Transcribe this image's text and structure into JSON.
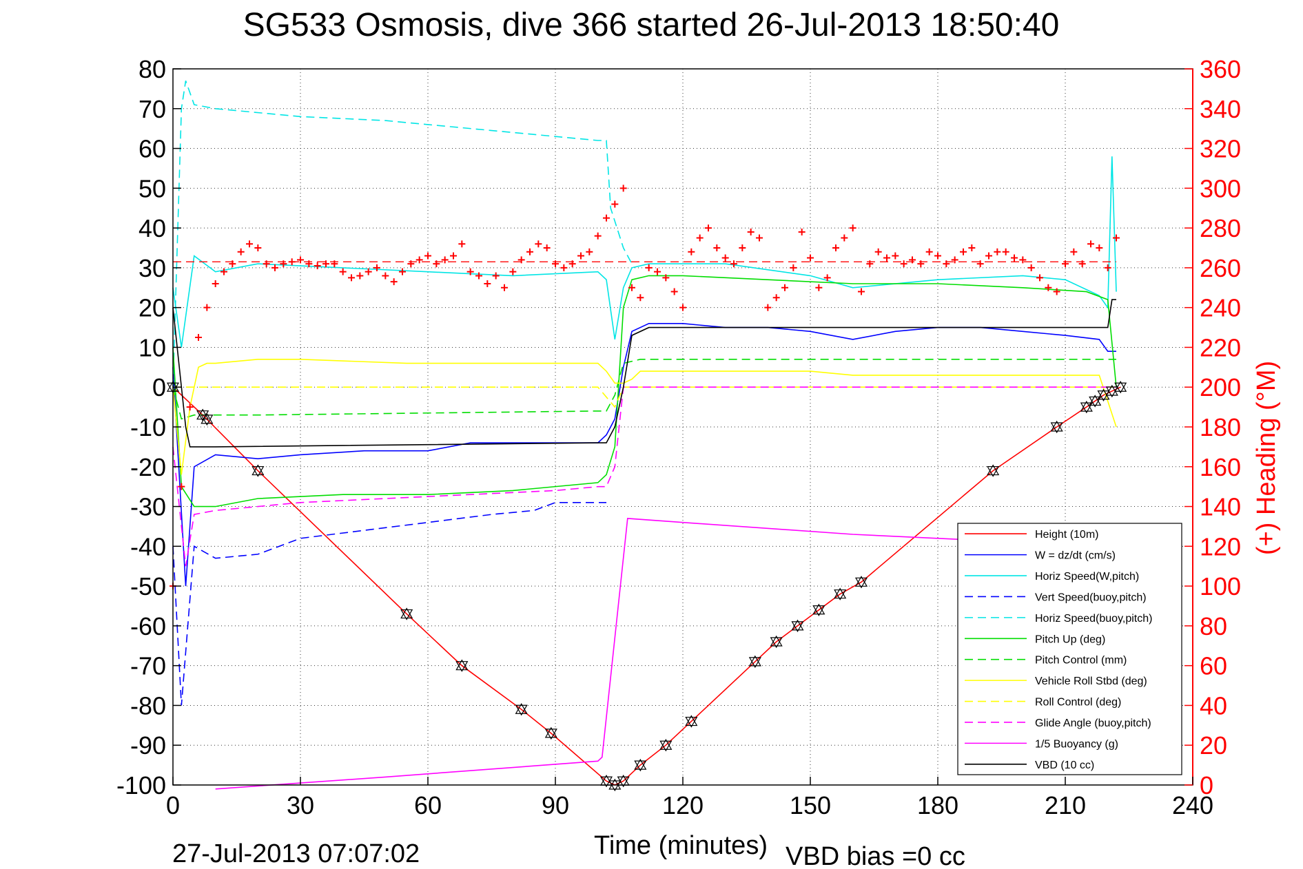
{
  "chart_data": {
    "type": "line",
    "title": "SG533 Osmosis, dive 366 started 26-Jul-2013 18:50:40",
    "xlabel": "Time (minutes)",
    "ylabel_right": "(+) Heading (°M)",
    "footer_date": "27-Jul-2013 07:07:02",
    "footer_note": "VBD bias =0 cc",
    "xlim": [
      0,
      240
    ],
    "ylim_left": [
      -100,
      80
    ],
    "ylim_right": [
      0,
      360
    ],
    "xticks": [
      0,
      30,
      60,
      90,
      120,
      150,
      180,
      210,
      240
    ],
    "yticks_left": [
      -100,
      -90,
      -80,
      -70,
      -60,
      -50,
      -40,
      -30,
      -20,
      -10,
      0,
      10,
      20,
      30,
      40,
      50,
      60,
      70,
      80
    ],
    "yticks_right": [
      0,
      20,
      40,
      60,
      80,
      100,
      120,
      140,
      160,
      180,
      200,
      220,
      240,
      260,
      280,
      300,
      320,
      340,
      360
    ],
    "grid": true,
    "legend_position": "bottom-right",
    "colors": {
      "right_axis": "#ff0000",
      "axes": "#000000",
      "grid": "#333333"
    },
    "series": [
      {
        "name": "Height (10m)",
        "color": "#ff0000",
        "dash": "solid",
        "x": [
          0,
          7,
          20,
          55,
          68,
          82,
          89,
          102,
          104,
          106,
          110,
          116,
          122,
          137,
          142,
          147,
          152,
          157,
          162,
          193,
          208,
          215,
          219,
          223
        ],
        "y": [
          0,
          -7,
          -21,
          -57,
          -70,
          -81,
          -87,
          -99,
          -100,
          -99,
          -95,
          -90,
          -84,
          -69,
          -64,
          -60,
          -56,
          -52,
          -49,
          -21,
          -10,
          -5,
          -2,
          0
        ]
      },
      {
        "name": "W = dz/dt (cm/s)",
        "color": "#0000ff",
        "dash": "solid",
        "x": [
          0,
          3,
          5,
          10,
          20,
          30,
          45,
          60,
          70,
          80,
          90,
          100,
          102,
          104,
          106,
          108,
          112,
          120,
          130,
          140,
          150,
          160,
          170,
          180,
          190,
          200,
          210,
          218,
          220,
          222
        ],
        "y": [
          5,
          -50,
          -20,
          -17,
          -18,
          -17,
          -16,
          -16,
          -14,
          -14,
          -14,
          -14,
          -12,
          -8,
          5,
          14,
          16,
          16,
          15,
          15,
          14,
          12,
          14,
          15,
          15,
          14,
          13,
          12,
          9,
          9
        ]
      },
      {
        "name": "Horiz Speed(W,pitch)",
        "color": "#00e5e5",
        "dash": "solid",
        "x": [
          0,
          2,
          5,
          10,
          20,
          40,
          60,
          80,
          100,
          102,
          104,
          106,
          108,
          112,
          130,
          150,
          160,
          180,
          200,
          210,
          218,
          220,
          221,
          222
        ],
        "y": [
          25,
          10,
          33,
          29,
          31,
          30,
          29,
          28,
          29,
          27,
          12,
          25,
          30,
          31,
          31,
          28,
          25,
          27,
          28,
          27,
          23,
          20,
          58,
          24
        ]
      },
      {
        "name": "Vert Speed(buoy,pitch)",
        "color": "#0000ff",
        "dash": "dashed",
        "x": [
          0,
          2,
          5,
          10,
          20,
          30,
          45,
          60,
          75,
          85,
          90,
          95,
          100,
          102
        ],
        "y": [
          -40,
          -80,
          -40,
          -43,
          -42,
          -38,
          -36,
          -34,
          -32,
          -31,
          -29,
          -29,
          -29,
          -29
        ]
      },
      {
        "name": "Horiz Speed(buoy,pitch)",
        "color": "#00e5e5",
        "dash": "dashed",
        "x": [
          0,
          2,
          3,
          5,
          10,
          30,
          50,
          60,
          80,
          90,
          100,
          102,
          103,
          106,
          108
        ],
        "y": [
          0,
          70,
          77,
          71,
          70,
          68,
          67,
          66,
          64,
          63,
          62,
          62,
          45,
          35,
          31
        ]
      },
      {
        "name": "Pitch Up (deg)",
        "color": "#00dd00",
        "dash": "solid",
        "x": [
          0,
          2,
          5,
          10,
          20,
          40,
          60,
          80,
          100,
          102,
          104,
          106,
          108,
          112,
          120,
          140,
          160,
          180,
          200,
          215,
          220,
          222
        ],
        "y": [
          10,
          -25,
          -30,
          -30,
          -28,
          -27,
          -27,
          -26,
          -24,
          -22,
          -15,
          20,
          27,
          28,
          28,
          27,
          26,
          26,
          25,
          24,
          22,
          0
        ]
      },
      {
        "name": "Pitch Control (mm)",
        "color": "#00dd00",
        "dash": "dashed",
        "x": [
          0,
          2,
          5,
          20,
          100,
          102,
          104,
          106,
          110,
          115,
          220,
          222
        ],
        "y": [
          0,
          -8,
          -7,
          -7,
          -6,
          -6,
          -2,
          6,
          7,
          7,
          7,
          7
        ]
      },
      {
        "name": "Vehicle Roll Stbd (deg)",
        "color": "#ffff00",
        "dash": "solid",
        "x": [
          0,
          2,
          4,
          6,
          8,
          10,
          20,
          30,
          55,
          70,
          90,
          100,
          102,
          104,
          106,
          108,
          110,
          130,
          150,
          160,
          180,
          200,
          210,
          218,
          222
        ],
        "y": [
          0,
          -22,
          -5,
          5,
          6,
          6,
          7,
          7,
          6,
          6,
          6,
          6,
          4,
          1,
          1,
          2,
          4,
          4,
          4,
          3,
          3,
          3,
          3,
          3,
          -10
        ]
      },
      {
        "name": "Roll Control (deg)",
        "color": "#ffff00",
        "dash": "dashed",
        "x": [
          0,
          5,
          100,
          104,
          106,
          222
        ],
        "y": [
          0,
          0,
          0,
          -5,
          0,
          0
        ]
      },
      {
        "name": "Glide Angle (buoy,pitch)",
        "color": "#ff00ff",
        "dash": "dashed",
        "x": [
          0,
          3,
          5,
          10,
          20,
          30,
          50,
          70,
          90,
          100,
          102,
          104,
          106,
          222
        ],
        "y": [
          -15,
          -45,
          -32,
          -31,
          -30,
          -29,
          -28,
          -27,
          -26,
          -25,
          -25,
          -20,
          0,
          0
        ]
      },
      {
        "name": "1/5 Buoyancy (g)",
        "color": "#ff00ff",
        "dash": "solid",
        "x": [
          10,
          50,
          100,
          101,
          107,
          120,
          160,
          200,
          222
        ],
        "y": [
          -101,
          -98,
          -94,
          -93,
          -33,
          -34,
          -37,
          -39,
          -39
        ]
      },
      {
        "name": "VBD (10 cc)",
        "color": "#000000",
        "dash": "solid",
        "x": [
          0,
          2,
          3,
          4,
          10,
          100,
          102,
          104,
          106,
          108,
          112,
          220,
          221,
          222
        ],
        "y": [
          20,
          0,
          -10,
          -15,
          -15,
          -14,
          -14,
          -10,
          0,
          13,
          15,
          15,
          22,
          22
        ]
      }
    ],
    "heading": {
      "name": "(+) Heading",
      "color": "#ff0000",
      "marker": "+",
      "dash_level": 263,
      "x": [
        0,
        2,
        4,
        6,
        8,
        10,
        12,
        14,
        16,
        18,
        20,
        22,
        24,
        26,
        28,
        30,
        32,
        34,
        36,
        38,
        40,
        42,
        44,
        46,
        48,
        50,
        52,
        54,
        56,
        58,
        60,
        62,
        64,
        66,
        68,
        70,
        72,
        74,
        76,
        78,
        80,
        82,
        84,
        86,
        88,
        90,
        92,
        94,
        96,
        98,
        100,
        102,
        104,
        106,
        108,
        110,
        112,
        114,
        116,
        118,
        120,
        122,
        124,
        126,
        128,
        130,
        132,
        134,
        136,
        138,
        140,
        142,
        144,
        146,
        148,
        150,
        152,
        154,
        156,
        158,
        160,
        162,
        164,
        166,
        168,
        170,
        172,
        174,
        176,
        178,
        180,
        182,
        184,
        186,
        188,
        190,
        192,
        194,
        196,
        198,
        200,
        202,
        204,
        206,
        208,
        210,
        212,
        214,
        216,
        218,
        220,
        222
      ],
      "y": [
        100,
        150,
        190,
        225,
        240,
        252,
        258,
        262,
        268,
        272,
        270,
        262,
        260,
        262,
        263,
        264,
        262,
        261,
        262,
        262,
        258,
        255,
        256,
        258,
        260,
        256,
        253,
        258,
        262,
        264,
        266,
        262,
        264,
        266,
        272,
        258,
        256,
        252,
        256,
        250,
        258,
        264,
        268,
        272,
        270,
        262,
        260,
        262,
        266,
        268,
        276,
        285,
        292,
        300,
        250,
        245,
        260,
        258,
        255,
        248,
        240,
        268,
        275,
        280,
        270,
        265,
        262,
        270,
        278,
        275,
        240,
        245,
        250,
        260,
        278,
        265,
        250,
        255,
        270,
        275,
        280,
        248,
        262,
        268,
        265,
        266,
        262,
        264,
        262,
        268,
        266,
        262,
        264,
        268,
        270,
        262,
        266,
        268,
        268,
        265,
        264,
        260,
        255,
        250,
        248,
        262,
        268,
        262,
        272,
        270,
        260,
        275
      ]
    },
    "height_markers_x": [
      0,
      7,
      8,
      20,
      55,
      68,
      82,
      89,
      102,
      104,
      106,
      110,
      116,
      122,
      137,
      142,
      147,
      152,
      157,
      162,
      193,
      208,
      215,
      217,
      219,
      221,
      223
    ]
  }
}
